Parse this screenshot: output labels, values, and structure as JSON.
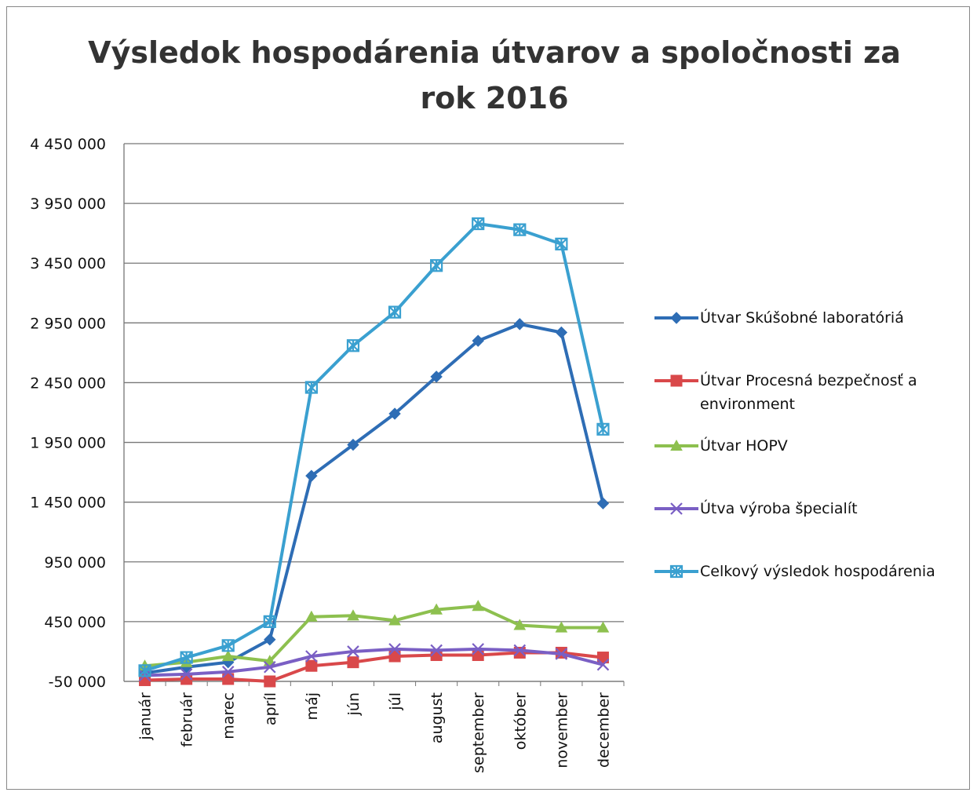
{
  "chart_data": {
    "type": "line",
    "title": "Výsledok hospodárenia útvarov a spoločnosti za rok 2016",
    "categories": [
      "január",
      "február",
      "marec",
      "apríl",
      "máj",
      "jún",
      "júl",
      "august",
      "september",
      "október",
      "november",
      "december"
    ],
    "ylim": [
      -50000,
      4450000
    ],
    "yticks": [
      {
        "value": -50000,
        "label": "-50 000"
      },
      {
        "value": 450000,
        "label": "450 000"
      },
      {
        "value": 950000,
        "label": "950 000"
      },
      {
        "value": 1450000,
        "label": "1 450 000"
      },
      {
        "value": 1950000,
        "label": "1 950 000"
      },
      {
        "value": 2450000,
        "label": "2 450 000"
      },
      {
        "value": 2950000,
        "label": "2 950 000"
      },
      {
        "value": 3450000,
        "label": "3 450 000"
      },
      {
        "value": 3950000,
        "label": "3 950 000"
      },
      {
        "value": 4450000,
        "label": "4 450 000"
      }
    ],
    "grid": true,
    "legend": "right",
    "series": [
      {
        "name": "Útvar Skúšobné laboratóriá",
        "color": "#2e6db5",
        "marker": "diamond",
        "values": [
          20000,
          70000,
          110000,
          300000,
          1670000,
          1930000,
          2190000,
          2500000,
          2800000,
          2940000,
          2870000,
          1440000
        ]
      },
      {
        "name": "Útvar Procesná bezpečnosť a environment",
        "color": "#d9484a",
        "marker": "square",
        "values": [
          -40000,
          -30000,
          -30000,
          -50000,
          80000,
          110000,
          160000,
          170000,
          170000,
          190000,
          190000,
          150000
        ]
      },
      {
        "name": "Útvar HOPV",
        "color": "#8dc04f",
        "marker": "triangle",
        "values": [
          80000,
          110000,
          160000,
          120000,
          490000,
          500000,
          460000,
          550000,
          580000,
          420000,
          400000,
          400000
        ]
      },
      {
        "name": "Útva výroba špecialít",
        "color": "#7a5fc4",
        "marker": "x",
        "values": [
          0,
          10000,
          30000,
          70000,
          160000,
          200000,
          220000,
          210000,
          220000,
          210000,
          180000,
          90000
        ]
      },
      {
        "name": "Celkový výsledok hospodárenia",
        "color": "#3aa0d0",
        "marker": "star",
        "values": [
          40000,
          150000,
          250000,
          450000,
          2410000,
          2760000,
          3040000,
          3430000,
          3780000,
          3730000,
          3610000,
          2060000
        ]
      }
    ]
  }
}
